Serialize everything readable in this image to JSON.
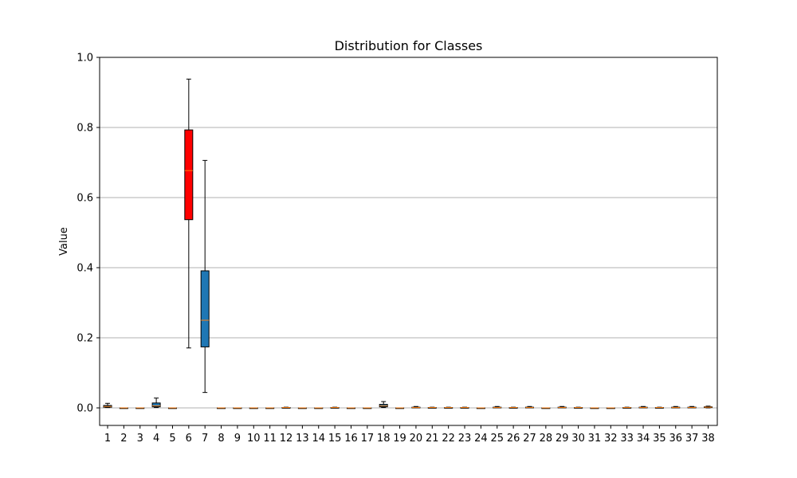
{
  "chart_data": {
    "type": "box",
    "title": "Distribution for Classes",
    "xlabel": "",
    "ylabel": "Value",
    "ylim": [
      -0.05,
      1.0
    ],
    "yticks": [
      0.0,
      0.2,
      0.4,
      0.6,
      0.8,
      1.0
    ],
    "ytick_labels": [
      "0.0",
      "0.2",
      "0.4",
      "0.6",
      "0.8",
      "1.0"
    ],
    "grid": "y",
    "colors": {
      "default_box": "#1f77b4",
      "highlight_box": "#ff0000",
      "median": "#ff7f0e",
      "grid": "#b0b0b0"
    },
    "categories": [
      "1",
      "2",
      "3",
      "4",
      "5",
      "6",
      "7",
      "8",
      "9",
      "10",
      "11",
      "12",
      "13",
      "14",
      "15",
      "16",
      "17",
      "18",
      "19",
      "20",
      "21",
      "22",
      "23",
      "24",
      "25",
      "26",
      "27",
      "28",
      "29",
      "30",
      "31",
      "32",
      "33",
      "34",
      "35",
      "36",
      "37",
      "38"
    ],
    "boxes": [
      {
        "label": "1",
        "whislo": 0.001,
        "q1": 0.002,
        "med": 0.004,
        "q3": 0.007,
        "whishi": 0.013,
        "highlight": false
      },
      {
        "label": "2",
        "whislo": 0.0,
        "q1": 0.0,
        "med": 0.0,
        "q3": 0.0,
        "whishi": 0.0,
        "highlight": false
      },
      {
        "label": "3",
        "whislo": 0.0,
        "q1": 0.0,
        "med": 0.0,
        "q3": 0.0,
        "whishi": 0.0,
        "highlight": false
      },
      {
        "label": "4",
        "whislo": 0.001,
        "q1": 0.003,
        "med": 0.006,
        "q3": 0.014,
        "whishi": 0.028,
        "highlight": false
      },
      {
        "label": "5",
        "whislo": 0.0,
        "q1": 0.0,
        "med": 0.0,
        "q3": 0.0,
        "whishi": 0.0,
        "highlight": false
      },
      {
        "label": "6",
        "whislo": 0.171,
        "q1": 0.537,
        "med": 0.677,
        "q3": 0.793,
        "whishi": 0.938,
        "highlight": true
      },
      {
        "label": "7",
        "whislo": 0.044,
        "q1": 0.174,
        "med": 0.25,
        "q3": 0.391,
        "whishi": 0.706,
        "highlight": false
      },
      {
        "label": "8",
        "whislo": 0.0,
        "q1": 0.0,
        "med": 0.0,
        "q3": 0.0,
        "whishi": 0.0,
        "highlight": false
      },
      {
        "label": "9",
        "whislo": 0.0,
        "q1": 0.0,
        "med": 0.0,
        "q3": 0.0,
        "whishi": 0.0,
        "highlight": false
      },
      {
        "label": "10",
        "whislo": 0.0,
        "q1": 0.0,
        "med": 0.0,
        "q3": 0.0,
        "whishi": 0.0,
        "highlight": false
      },
      {
        "label": "11",
        "whislo": 0.0,
        "q1": 0.0,
        "med": 0.0,
        "q3": 0.0,
        "whishi": 0.0,
        "highlight": false
      },
      {
        "label": "12",
        "whislo": 0.0,
        "q1": 0.0,
        "med": 0.001,
        "q3": 0.001,
        "whishi": 0.002,
        "highlight": false
      },
      {
        "label": "13",
        "whislo": 0.0,
        "q1": 0.0,
        "med": 0.0,
        "q3": 0.0,
        "whishi": 0.0,
        "highlight": false
      },
      {
        "label": "14",
        "whislo": 0.0,
        "q1": 0.0,
        "med": 0.0,
        "q3": 0.0,
        "whishi": 0.0,
        "highlight": false
      },
      {
        "label": "15",
        "whislo": 0.0,
        "q1": 0.0,
        "med": 0.001,
        "q3": 0.001,
        "whishi": 0.002,
        "highlight": false
      },
      {
        "label": "16",
        "whislo": 0.0,
        "q1": 0.0,
        "med": 0.0,
        "q3": 0.0,
        "whishi": 0.0,
        "highlight": false
      },
      {
        "label": "17",
        "whislo": 0.0,
        "q1": 0.0,
        "med": 0.0,
        "q3": 0.0,
        "whishi": 0.0,
        "highlight": false
      },
      {
        "label": "18",
        "whislo": 0.001,
        "q1": 0.003,
        "med": 0.006,
        "q3": 0.01,
        "whishi": 0.018,
        "highlight": false
      },
      {
        "label": "19",
        "whislo": 0.0,
        "q1": 0.0,
        "med": 0.0,
        "q3": 0.0,
        "whishi": 0.0,
        "highlight": false
      },
      {
        "label": "20",
        "whislo": 0.0,
        "q1": 0.0,
        "med": 0.001,
        "q3": 0.002,
        "whishi": 0.004,
        "highlight": false
      },
      {
        "label": "21",
        "whislo": 0.0,
        "q1": 0.0,
        "med": 0.001,
        "q3": 0.001,
        "whishi": 0.002,
        "highlight": false
      },
      {
        "label": "22",
        "whislo": 0.0,
        "q1": 0.0,
        "med": 0.001,
        "q3": 0.001,
        "whishi": 0.002,
        "highlight": false
      },
      {
        "label": "23",
        "whislo": 0.0,
        "q1": 0.0,
        "med": 0.001,
        "q3": 0.001,
        "whishi": 0.002,
        "highlight": false
      },
      {
        "label": "24",
        "whislo": 0.0,
        "q1": 0.0,
        "med": 0.0,
        "q3": 0.0,
        "whishi": 0.0,
        "highlight": false
      },
      {
        "label": "25",
        "whislo": 0.0,
        "q1": 0.0,
        "med": 0.001,
        "q3": 0.002,
        "whishi": 0.004,
        "highlight": false
      },
      {
        "label": "26",
        "whislo": 0.0,
        "q1": 0.0,
        "med": 0.001,
        "q3": 0.001,
        "whishi": 0.002,
        "highlight": false
      },
      {
        "label": "27",
        "whislo": 0.0,
        "q1": 0.0,
        "med": 0.001,
        "q3": 0.002,
        "whishi": 0.004,
        "highlight": false
      },
      {
        "label": "28",
        "whislo": 0.0,
        "q1": 0.0,
        "med": 0.0,
        "q3": 0.0,
        "whishi": 0.0,
        "highlight": false
      },
      {
        "label": "29",
        "whislo": 0.0,
        "q1": 0.0,
        "med": 0.001,
        "q3": 0.002,
        "whishi": 0.004,
        "highlight": false
      },
      {
        "label": "30",
        "whislo": 0.0,
        "q1": 0.0,
        "med": 0.001,
        "q3": 0.001,
        "whishi": 0.002,
        "highlight": false
      },
      {
        "label": "31",
        "whislo": 0.0,
        "q1": 0.0,
        "med": 0.0,
        "q3": 0.0,
        "whishi": 0.0,
        "highlight": false
      },
      {
        "label": "32",
        "whislo": 0.0,
        "q1": 0.0,
        "med": 0.0,
        "q3": 0.0,
        "whishi": 0.0,
        "highlight": false
      },
      {
        "label": "33",
        "whislo": 0.0,
        "q1": 0.0,
        "med": 0.001,
        "q3": 0.001,
        "whishi": 0.002,
        "highlight": false
      },
      {
        "label": "34",
        "whislo": 0.0,
        "q1": 0.0,
        "med": 0.001,
        "q3": 0.002,
        "whishi": 0.004,
        "highlight": false
      },
      {
        "label": "35",
        "whislo": 0.0,
        "q1": 0.0,
        "med": 0.001,
        "q3": 0.001,
        "whishi": 0.002,
        "highlight": false
      },
      {
        "label": "36",
        "whislo": 0.0,
        "q1": 0.0,
        "med": 0.001,
        "q3": 0.002,
        "whishi": 0.004,
        "highlight": false
      },
      {
        "label": "37",
        "whislo": 0.0,
        "q1": 0.0,
        "med": 0.001,
        "q3": 0.002,
        "whishi": 0.004,
        "highlight": false
      },
      {
        "label": "38",
        "whislo": 0.0,
        "q1": 0.001,
        "med": 0.002,
        "q3": 0.003,
        "whishi": 0.005,
        "highlight": false
      }
    ]
  }
}
